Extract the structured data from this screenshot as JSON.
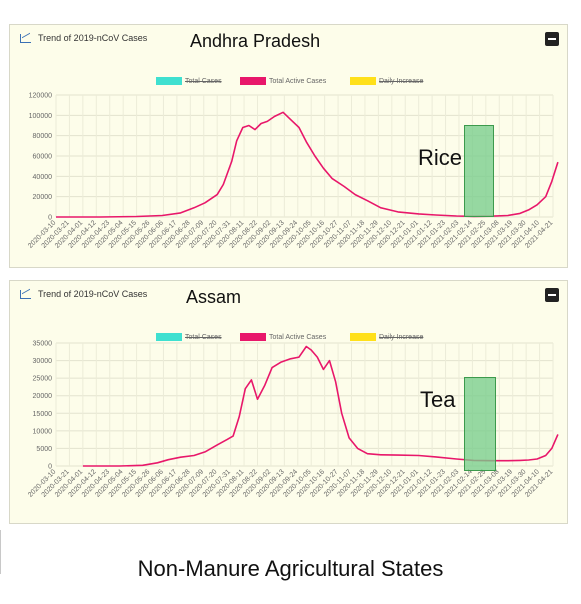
{
  "caption": "Non-Manure Agricultural States",
  "colors": {
    "total": "#3fe0d0",
    "active": "#e8176a",
    "daily": "#ffe01a"
  },
  "icons": {
    "panel": "line-chart-icon",
    "collapse": "minus-square-icon"
  },
  "chart_data": [
    {
      "type": "line",
      "title": "Trend of 2019-nCoV Cases",
      "state": "Andhra Pradesh",
      "annotation": "Rice",
      "legend": [
        "Total Cases",
        "Total Active Cases",
        "Daily Increase"
      ],
      "legend_struck": [
        true,
        false,
        true
      ],
      "ylim": [
        0,
        120000
      ],
      "yticks": [
        0,
        20000,
        40000,
        60000,
        80000,
        100000,
        120000
      ],
      "highlight_range": [
        "2021-02-14",
        "2021-03-12"
      ],
      "x_ticks": [
        "2020-03-10",
        "2020-03-21",
        "2020-04-01",
        "2020-04-12",
        "2020-04-23",
        "2020-05-04",
        "2020-05-15",
        "2020-05-26",
        "2020-06-06",
        "2020-06-17",
        "2020-06-28",
        "2020-07-09",
        "2020-07-20",
        "2020-07-31",
        "2020-08-11",
        "2020-08-22",
        "2020-09-02",
        "2020-09-13",
        "2020-09-24",
        "2020-10-05",
        "2020-10-16",
        "2020-10-27",
        "2020-11-07",
        "2020-11-18",
        "2020-11-29",
        "2020-12-10",
        "2020-12-21",
        "2021-01-01",
        "2021-01-12",
        "2021-01-23",
        "2021-02-03",
        "2021-02-14",
        "2021-02-25",
        "2021-03-08",
        "2021-03-19",
        "2021-03-30",
        "2021-04-10",
        "2021-04-21"
      ],
      "series": [
        {
          "name": "Total Active Cases",
          "x": [
            "2020-03-10",
            "2020-04-15",
            "2020-05-15",
            "2020-06-05",
            "2020-06-20",
            "2020-07-01",
            "2020-07-10",
            "2020-07-20",
            "2020-07-25",
            "2020-08-01",
            "2020-08-05",
            "2020-08-10",
            "2020-08-15",
            "2020-08-20",
            "2020-08-25",
            "2020-08-30",
            "2020-09-05",
            "2020-09-12",
            "2020-09-18",
            "2020-09-25",
            "2020-10-01",
            "2020-10-08",
            "2020-10-15",
            "2020-10-22",
            "2020-11-01",
            "2020-11-10",
            "2020-11-20",
            "2020-12-01",
            "2020-12-15",
            "2021-01-01",
            "2021-01-15",
            "2021-02-01",
            "2021-02-15",
            "2021-03-01",
            "2021-03-15",
            "2021-03-25",
            "2021-04-01",
            "2021-04-08",
            "2021-04-15",
            "2021-04-20",
            "2021-04-25"
          ],
          "y": [
            0,
            0,
            500,
            1500,
            4000,
            9000,
            14000,
            22000,
            32000,
            55000,
            75000,
            88000,
            90000,
            86000,
            92000,
            94000,
            99000,
            103000,
            96000,
            88000,
            74000,
            60000,
            48000,
            38000,
            30000,
            22000,
            16000,
            9000,
            5000,
            3000,
            2000,
            1000,
            600,
            800,
            1500,
            3500,
            7000,
            12000,
            20000,
            35000,
            54000
          ]
        }
      ]
    },
    {
      "type": "line",
      "title": "Trend of 2019-nCoV Cases",
      "state": "Assam",
      "annotation": "Tea",
      "legend": [
        "Total Cases",
        "Total Active Cases",
        "Daily Increase"
      ],
      "legend_struck": [
        true,
        false,
        true
      ],
      "ylim": [
        0,
        35000
      ],
      "yticks": [
        0,
        5000,
        10000,
        15000,
        20000,
        25000,
        30000,
        35000
      ],
      "highlight_range": [
        "2021-02-14",
        "2021-03-08"
      ],
      "x_ticks": [
        "2020-03-10",
        "2020-03-21",
        "2020-04-01",
        "2020-04-12",
        "2020-04-23",
        "2020-05-04",
        "2020-05-15",
        "2020-05-26",
        "2020-06-06",
        "2020-06-17",
        "2020-06-28",
        "2020-07-09",
        "2020-07-20",
        "2020-07-31",
        "2020-08-11",
        "2020-08-22",
        "2020-09-02",
        "2020-09-13",
        "2020-09-24",
        "2020-10-05",
        "2020-10-16",
        "2020-10-27",
        "2020-11-07",
        "2020-11-18",
        "2020-11-29",
        "2020-12-10",
        "2020-12-21",
        "2021-01-01",
        "2021-01-12",
        "2021-01-23",
        "2021-02-03",
        "2021-02-14",
        "2021-02-25",
        "2021-03-08",
        "2021-03-19",
        "2021-03-30",
        "2021-04-10",
        "2021-04-21"
      ],
      "series": [
        {
          "name": "Total Active Cases",
          "x": [
            "2020-04-01",
            "2020-05-01",
            "2020-05-20",
            "2020-06-01",
            "2020-06-10",
            "2020-06-20",
            "2020-07-01",
            "2020-07-10",
            "2020-07-20",
            "2020-07-28",
            "2020-08-02",
            "2020-08-07",
            "2020-08-12",
            "2020-08-17",
            "2020-08-22",
            "2020-08-28",
            "2020-09-03",
            "2020-09-10",
            "2020-09-18",
            "2020-09-25",
            "2020-10-01",
            "2020-10-05",
            "2020-10-10",
            "2020-10-15",
            "2020-10-20",
            "2020-10-25",
            "2020-10-30",
            "2020-11-05",
            "2020-11-12",
            "2020-11-20",
            "2020-12-01",
            "2020-12-15",
            "2021-01-01",
            "2021-01-15",
            "2021-02-01",
            "2021-02-15",
            "2021-03-01",
            "2021-03-15",
            "2021-03-25",
            "2021-04-01",
            "2021-04-08",
            "2021-04-15",
            "2021-04-20",
            "2021-04-25"
          ],
          "y": [
            0,
            0,
            200,
            900,
            1800,
            2500,
            3000,
            4000,
            6000,
            7500,
            8500,
            14000,
            22000,
            24500,
            19000,
            23000,
            28000,
            29500,
            30500,
            31000,
            34000,
            33000,
            31000,
            27500,
            30000,
            24000,
            15000,
            8000,
            5000,
            3500,
            3200,
            3100,
            3000,
            2600,
            2000,
            1600,
            1500,
            1500,
            1600,
            1700,
            2000,
            3000,
            5000,
            9000
          ]
        }
      ]
    }
  ]
}
